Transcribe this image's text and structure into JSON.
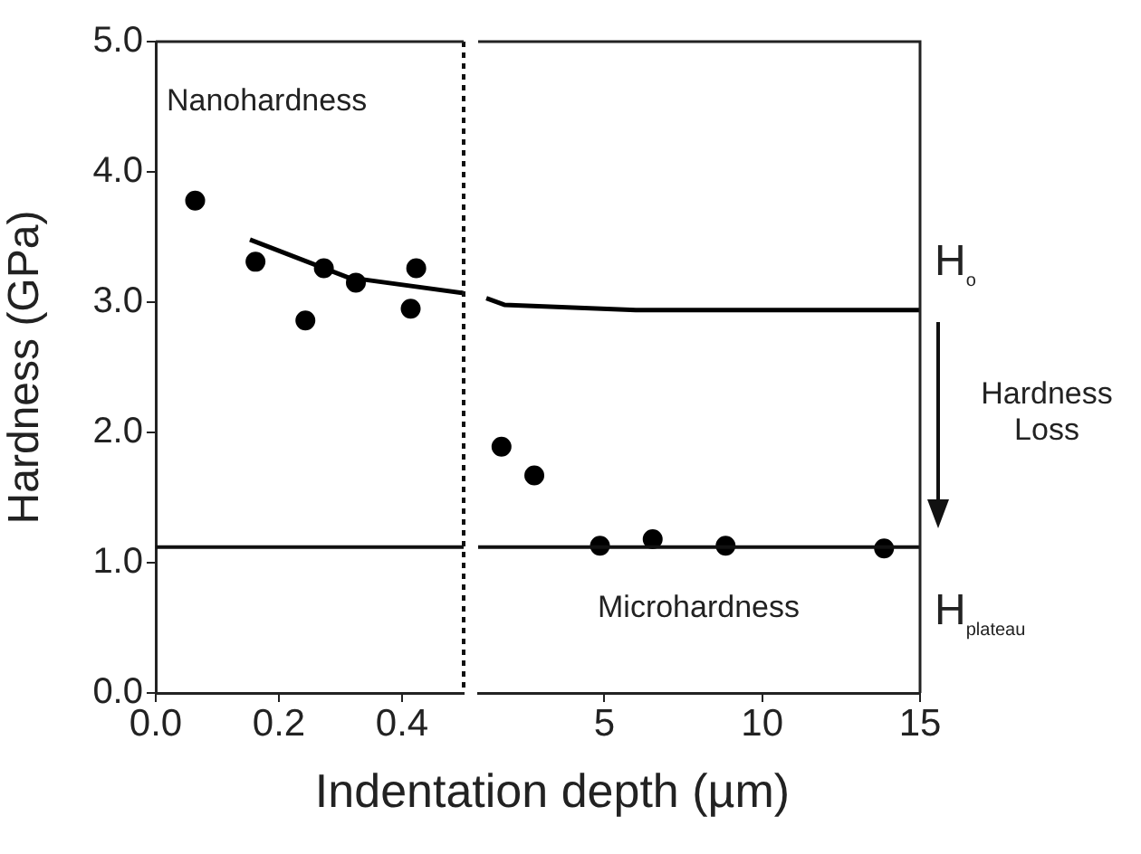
{
  "chart_data": [
    {
      "type": "scatter",
      "ylabel": "Hardness (GPa)",
      "xlabel": "Indentation depth (µm)",
      "xlim": [
        0,
        0.5
      ],
      "xticks": [
        {
          "value": 0,
          "label": "0.0"
        },
        {
          "value": 0.2,
          "label": "0.2"
        },
        {
          "value": 0.4,
          "label": "0.4"
        }
      ],
      "ylim": [
        0,
        5
      ],
      "yticks": [
        {
          "value": 0,
          "label": "0.0"
        },
        {
          "value": 1,
          "label": "1.0"
        },
        {
          "value": 2,
          "label": "2.0"
        },
        {
          "value": 3,
          "label": "3.0"
        },
        {
          "value": 4,
          "label": "4.0"
        },
        {
          "value": 5,
          "label": "5.0"
        }
      ],
      "grid": false,
      "legend": false,
      "marker": "circle",
      "series": [
        {
          "color": "#000000",
          "x": [
            0.064,
            0.162,
            0.243,
            0.273,
            0.325,
            0.414,
            0.423
          ],
          "values": [
            3.78,
            3.31,
            2.86,
            3.26,
            3.15,
            2.95,
            3.26
          ]
        },
        {
          "type": "line",
          "color": "#000000",
          "marker": "none",
          "x": [
            0.153,
            0.312,
            0.5
          ],
          "values": [
            3.48,
            3.19,
            3.07
          ]
        }
      ],
      "ref_lines": [
        {
          "axis": "y",
          "value": 1.12
        },
        {
          "axis": "x",
          "value": 0.5,
          "line_style": "dotted"
        }
      ],
      "annotations": [
        "Nanohardness"
      ]
    },
    {
      "type": "scatter",
      "xlim": [
        1,
        15
      ],
      "xticks": [
        5,
        10,
        15
      ],
      "ylim": [
        0,
        5
      ],
      "tick_labels": "x",
      "grid": false,
      "legend": false,
      "marker": "circle",
      "series": [
        {
          "color": "#000000",
          "x": [
            1.74,
            2.78,
            4.86,
            6.53,
            8.84,
            13.86
          ],
          "values": [
            1.89,
            1.67,
            1.13,
            1.18,
            1.13,
            1.11
          ]
        },
        {
          "type": "line",
          "color": "#000000",
          "marker": "none",
          "x": [
            1.26,
            1.83,
            6.0,
            15
          ],
          "values": [
            3.03,
            2.98,
            2.94,
            2.94
          ]
        }
      ],
      "ref_lines": [
        {
          "axis": "y",
          "value": 1.12,
          "label": "H$_{plateau}$"
        }
      ],
      "annotations": [
        "Microhardness",
        {
          "text": "H$_{o}$",
          "x": 15,
          "y": 2.94
        },
        "Hardness Loss"
      ]
    }
  ]
}
